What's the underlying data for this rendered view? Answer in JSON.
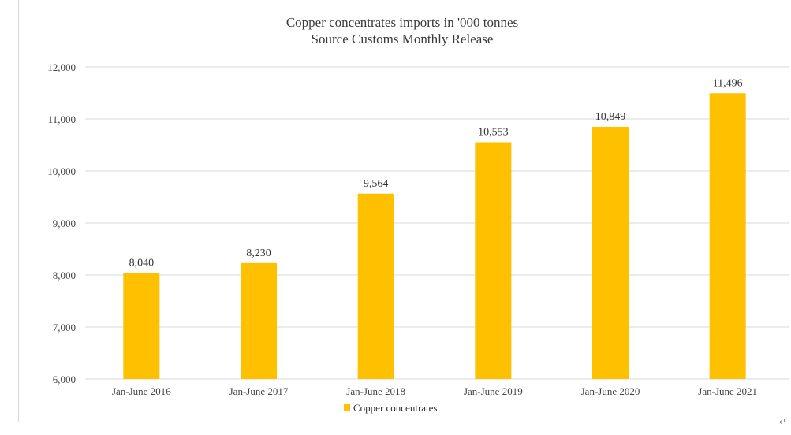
{
  "chart_data": {
    "type": "bar",
    "title": "Copper concentrates imports in '000 tonnes",
    "subtitle": "Source Customs Monthly Release",
    "categories": [
      "Jan-June 2016",
      "Jan-June 2017",
      "Jan-June 2018",
      "Jan-June 2019",
      "Jan-June 2020",
      "Jan-June 2021"
    ],
    "series": [
      {
        "name": "Copper concentrates",
        "values": [
          8040,
          8230,
          9564,
          10553,
          10849,
          11496
        ],
        "color": "#FFC000"
      }
    ],
    "data_labels": [
      "8,040",
      "8,230",
      "9,564",
      "10,553",
      "10,849",
      "11,496"
    ],
    "ylim": [
      6000,
      12000
    ],
    "yticks": [
      6000,
      7000,
      8000,
      9000,
      10000,
      11000,
      12000
    ],
    "ytick_labels": [
      "6,000",
      "7,000",
      "8,000",
      "9,000",
      "10,000",
      "11,000",
      "12,000"
    ],
    "xlabel": "",
    "ylabel": "",
    "grid": true,
    "legend_position": "bottom"
  }
}
